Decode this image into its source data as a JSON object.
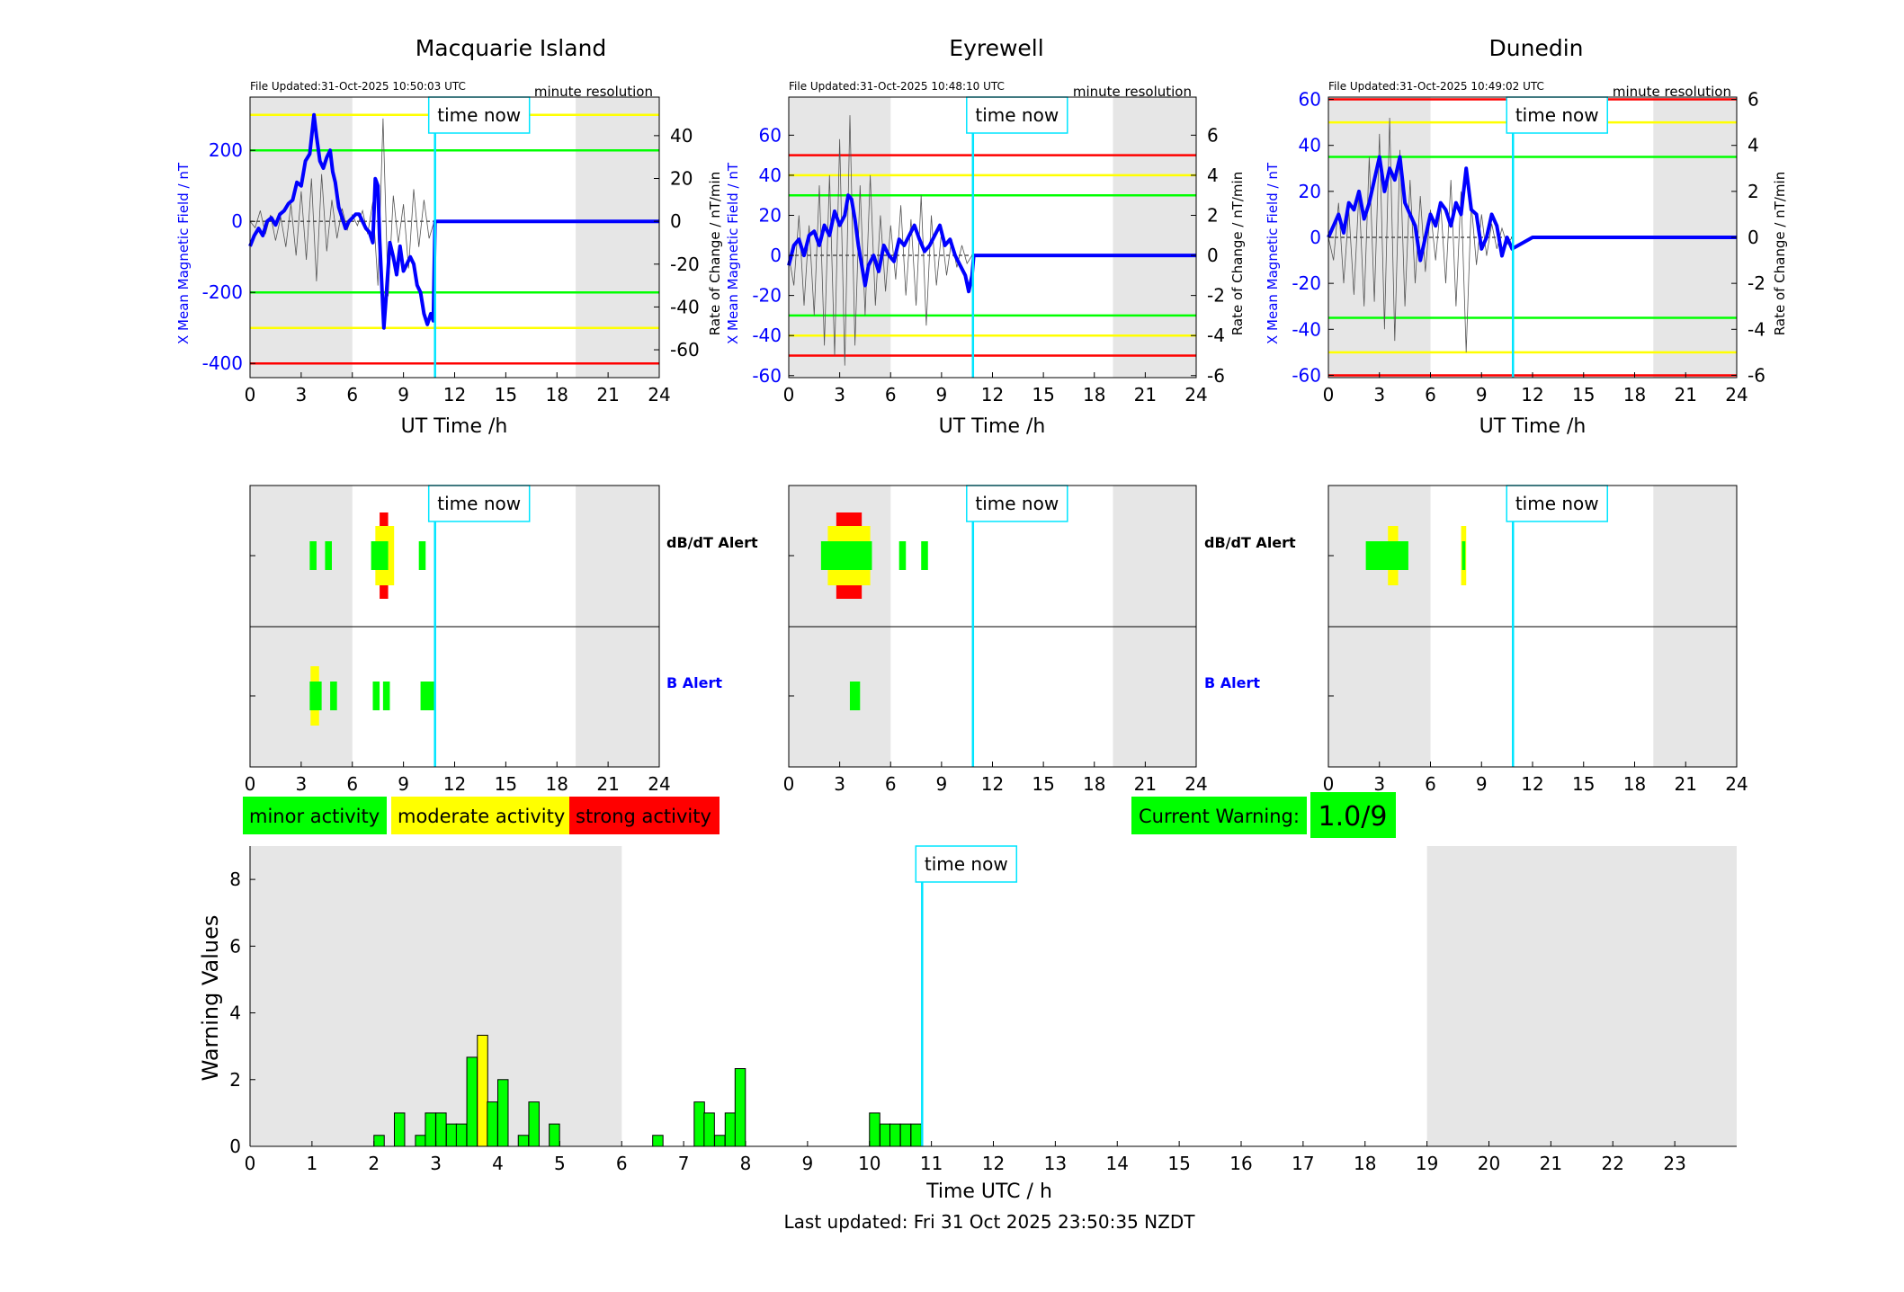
{
  "stations": [
    {
      "id": "mac",
      "name": "Macquarie Island",
      "file_updated": "File Updated:31-Oct-2025 10:50:03 UTC",
      "resolution": "minute resolution",
      "time_now_label": "time now",
      "ylabel_left": "X Mean Magnetic Field / nT",
      "ylabel_right": "Rate of Change / nT/min",
      "xlabel": "UT Time /h",
      "xlim": [
        0,
        24
      ],
      "ylim_left": [
        -440,
        350
      ],
      "yticks_left": [
        -400,
        -200,
        0,
        200
      ],
      "ylim_right": [
        -73,
        58
      ],
      "yticks_right": [
        -60,
        -40,
        -20,
        0,
        20,
        40
      ],
      "xticks": [
        0,
        3,
        6,
        9,
        12,
        15,
        18,
        21,
        24
      ],
      "night_shading": [
        [
          0,
          6
        ],
        [
          19.1,
          24
        ]
      ],
      "time_now": 10.85,
      "thresholds": [
        {
          "y": 300,
          "color": "#ffff00"
        },
        {
          "y": -300,
          "color": "#ffff00"
        },
        {
          "y": 200,
          "color": "#00ff00"
        },
        {
          "y": -200,
          "color": "#00ff00"
        },
        {
          "y": -400,
          "color": "#ff0000"
        }
      ],
      "x_series": {
        "t": [
          0,
          0.25,
          0.5,
          0.75,
          1,
          1.25,
          1.5,
          1.75,
          2,
          2.25,
          2.5,
          2.75,
          3,
          3.25,
          3.5,
          3.75,
          3.9,
          4.1,
          4.3,
          4.5,
          4.7,
          4.85,
          5,
          5.2,
          5.4,
          5.6,
          5.8,
          6,
          6.2,
          6.4,
          6.6,
          6.8,
          7,
          7.2,
          7.35,
          7.5,
          7.6,
          7.75,
          7.85,
          8,
          8.2,
          8.4,
          8.6,
          8.8,
          9,
          9.2,
          9.4,
          9.6,
          9.8,
          10,
          10.2,
          10.4,
          10.6,
          10.75,
          10.85,
          11,
          12,
          24
        ],
        "v": [
          -70,
          -40,
          -20,
          -40,
          0,
          10,
          -10,
          20,
          30,
          50,
          60,
          110,
          100,
          170,
          190,
          300,
          240,
          170,
          150,
          180,
          200,
          140,
          110,
          40,
          10,
          -20,
          0,
          10,
          20,
          20,
          0,
          -20,
          -30,
          -60,
          120,
          100,
          -50,
          -200,
          -300,
          -200,
          -60,
          -100,
          -150,
          -70,
          -140,
          -120,
          -100,
          -120,
          -180,
          -200,
          -260,
          -290,
          -260,
          -280,
          0,
          0,
          0,
          0
        ]
      },
      "dbdt_series": {
        "t": [
          0,
          0.3,
          0.6,
          0.9,
          1.2,
          1.5,
          1.8,
          2.1,
          2.4,
          2.7,
          3.0,
          3.3,
          3.6,
          3.9,
          4.2,
          4.5,
          4.8,
          5.1,
          5.4,
          5.7,
          6.0,
          6.3,
          6.6,
          6.9,
          7.2,
          7.5,
          7.8,
          8.1,
          8.4,
          8.7,
          9.0,
          9.3,
          9.6,
          9.9,
          10.2,
          10.5,
          10.8
        ],
        "v": [
          0,
          -3,
          5,
          -6,
          3,
          -9,
          2,
          -12,
          8,
          -16,
          14,
          -18,
          20,
          -28,
          22,
          -14,
          10,
          -8,
          6,
          -4,
          3,
          -2,
          5,
          -6,
          9,
          -30,
          48,
          -35,
          12,
          -10,
          8,
          -22,
          15,
          -12,
          10,
          -8,
          0
        ]
      },
      "alerts": {
        "dbdt": [
          {
            "start": 3.5,
            "end": 3.9,
            "level": "minor"
          },
          {
            "start": 4.4,
            "end": 4.8,
            "level": "minor"
          },
          {
            "start": 7.6,
            "end": 8.1,
            "level": "strong"
          },
          {
            "start": 7.35,
            "end": 8.45,
            "level": "moderate"
          },
          {
            "start": 7.1,
            "end": 8.1,
            "level": "minor"
          },
          {
            "start": 9.9,
            "end": 10.3,
            "level": "minor"
          }
        ],
        "b": [
          {
            "start": 3.55,
            "end": 4.05,
            "level": "moderate"
          },
          {
            "start": 3.5,
            "end": 4.2,
            "level": "minor"
          },
          {
            "start": 4.7,
            "end": 5.1,
            "level": "minor"
          },
          {
            "start": 7.2,
            "end": 7.6,
            "level": "minor"
          },
          {
            "start": 7.8,
            "end": 8.2,
            "level": "minor"
          },
          {
            "start": 10.0,
            "end": 10.85,
            "level": "minor"
          }
        ]
      }
    },
    {
      "id": "eye",
      "name": "Eyrewell",
      "file_updated": "File Updated:31-Oct-2025 10:48:10 UTC",
      "resolution": "minute resolution",
      "time_now_label": "time now",
      "ylabel_left": "X Mean Magnetic Field / nT",
      "ylabel_right": "Rate of Change / nT/min",
      "xlabel": "UT Time /h",
      "xlim": [
        0,
        24
      ],
      "ylim_left": [
        -61,
        79
      ],
      "yticks_left": [
        -60,
        -40,
        -20,
        0,
        20,
        40,
        60
      ],
      "ylim_right": [
        -6.1,
        7.9
      ],
      "yticks_right": [
        -6,
        -4,
        -2,
        0,
        2,
        4,
        6
      ],
      "xticks": [
        0,
        3,
        6,
        9,
        12,
        15,
        18,
        21,
        24
      ],
      "night_shading": [
        [
          0,
          6
        ],
        [
          19.1,
          24
        ]
      ],
      "time_now": 10.85,
      "thresholds": [
        {
          "y": 50,
          "color": "#ff0000"
        },
        {
          "y": -50,
          "color": "#ff0000"
        },
        {
          "y": 40,
          "color": "#ffff00"
        },
        {
          "y": -40,
          "color": "#ffff00"
        },
        {
          "y": 30,
          "color": "#00ff00"
        },
        {
          "y": -30,
          "color": "#00ff00"
        }
      ],
      "x_series": {
        "t": [
          0,
          0.3,
          0.6,
          0.9,
          1.2,
          1.5,
          1.8,
          2.1,
          2.4,
          2.7,
          3.0,
          3.3,
          3.5,
          3.7,
          3.9,
          4.1,
          4.3,
          4.5,
          4.7,
          5.0,
          5.3,
          5.6,
          5.9,
          6.2,
          6.5,
          6.8,
          7.1,
          7.4,
          7.7,
          8.0,
          8.3,
          8.6,
          8.9,
          9.2,
          9.5,
          9.8,
          10.1,
          10.4,
          10.6,
          10.8,
          10.9,
          12,
          24
        ],
        "v": [
          -5,
          5,
          8,
          0,
          10,
          12,
          5,
          15,
          10,
          22,
          15,
          20,
          30,
          28,
          18,
          5,
          -5,
          -15,
          -5,
          0,
          -8,
          5,
          0,
          -3,
          8,
          5,
          10,
          15,
          8,
          2,
          5,
          10,
          15,
          5,
          8,
          0,
          -5,
          -10,
          -18,
          -10,
          0,
          0,
          0
        ]
      },
      "dbdt_series": {
        "t": [
          0,
          0.3,
          0.6,
          0.9,
          1.2,
          1.5,
          1.8,
          2.1,
          2.4,
          2.7,
          3.0,
          3.3,
          3.6,
          3.9,
          4.2,
          4.5,
          4.8,
          5.1,
          5.4,
          5.7,
          6.0,
          6.3,
          6.6,
          6.9,
          7.2,
          7.5,
          7.8,
          8.1,
          8.4,
          8.7,
          9.0,
          9.3,
          9.6,
          9.9,
          10.2,
          10.5,
          10.8
        ],
        "v": [
          0,
          -1.5,
          2,
          -2.5,
          1.5,
          -3,
          3.5,
          -4.5,
          4,
          -5,
          5.8,
          -5.5,
          7,
          -4.5,
          3.5,
          -3,
          4,
          -2.5,
          2,
          -1.8,
          1.5,
          -1.2,
          2.5,
          -2,
          1.8,
          -2.5,
          3,
          -3.5,
          2,
          -1.5,
          1.2,
          -1,
          0.8,
          -0.6,
          0.5,
          -0.4,
          0
        ]
      },
      "alerts": {
        "dbdt": [
          {
            "start": 2.8,
            "end": 4.3,
            "level": "strong"
          },
          {
            "start": 2.3,
            "end": 4.8,
            "level": "moderate"
          },
          {
            "start": 1.9,
            "end": 4.9,
            "level": "minor"
          },
          {
            "start": 6.5,
            "end": 6.9,
            "level": "minor"
          },
          {
            "start": 7.8,
            "end": 8.2,
            "level": "minor"
          }
        ],
        "b": [
          {
            "start": 3.6,
            "end": 4.2,
            "level": "minor"
          }
        ]
      }
    },
    {
      "id": "dun",
      "name": "Dunedin",
      "file_updated": "File Updated:31-Oct-2025 10:49:02 UTC",
      "resolution": "minute resolution",
      "time_now_label": "time now",
      "ylabel_left": "X Mean Magnetic Field / nT",
      "ylabel_right": "Rate of Change / nT/min",
      "xlabel": "UT Time /h",
      "xlim": [
        0,
        24
      ],
      "ylim_left": [
        -61,
        61
      ],
      "yticks_left": [
        -60,
        -40,
        -20,
        0,
        20,
        40,
        60
      ],
      "ylim_right": [
        -6.1,
        6.1
      ],
      "yticks_right": [
        -6,
        -4,
        -2,
        0,
        2,
        4,
        6
      ],
      "xticks": [
        0,
        3,
        6,
        9,
        12,
        15,
        18,
        21,
        24
      ],
      "night_shading": [
        [
          0,
          6
        ],
        [
          19.1,
          24
        ]
      ],
      "time_now": 10.85,
      "thresholds": [
        {
          "y": 60,
          "color": "#ff0000"
        },
        {
          "y": -60,
          "color": "#ff0000"
        },
        {
          "y": 50,
          "color": "#ffff00"
        },
        {
          "y": -50,
          "color": "#ffff00"
        },
        {
          "y": 35,
          "color": "#00ff00"
        },
        {
          "y": -35,
          "color": "#00ff00"
        }
      ],
      "x_series": {
        "t": [
          0,
          0.3,
          0.6,
          0.9,
          1.2,
          1.5,
          1.8,
          2.1,
          2.4,
          2.7,
          3.0,
          3.3,
          3.6,
          3.9,
          4.2,
          4.5,
          4.8,
          5.1,
          5.4,
          5.7,
          6.0,
          6.3,
          6.6,
          6.9,
          7.2,
          7.5,
          7.8,
          8.1,
          8.4,
          8.7,
          9.0,
          9.3,
          9.6,
          9.9,
          10.2,
          10.5,
          10.8,
          12,
          24
        ],
        "v": [
          0,
          5,
          10,
          2,
          15,
          12,
          20,
          8,
          15,
          25,
          35,
          20,
          30,
          25,
          35,
          15,
          10,
          5,
          -10,
          0,
          10,
          5,
          15,
          12,
          5,
          15,
          10,
          30,
          12,
          10,
          -5,
          0,
          10,
          5,
          -8,
          0,
          -5,
          0,
          0
        ]
      },
      "dbdt_series": {
        "t": [
          0,
          0.3,
          0.6,
          0.9,
          1.2,
          1.5,
          1.8,
          2.1,
          2.4,
          2.7,
          3.0,
          3.3,
          3.6,
          3.9,
          4.2,
          4.5,
          4.8,
          5.1,
          5.4,
          5.7,
          6.0,
          6.3,
          6.6,
          6.9,
          7.2,
          7.5,
          7.8,
          8.1,
          8.4,
          8.7,
          9.0,
          9.3,
          9.6,
          9.9,
          10.2,
          10.5,
          10.8
        ],
        "v": [
          0,
          -1,
          1.5,
          -2,
          1.2,
          -2.5,
          2,
          -3,
          3.5,
          -2.8,
          4.5,
          -4,
          5.2,
          -4.5,
          3.8,
          -3,
          2.5,
          -2,
          1.8,
          -1.5,
          1.2,
          -1,
          1.5,
          -2,
          2.5,
          -3,
          2,
          -5,
          1.5,
          -1.2,
          1,
          -0.8,
          0.6,
          -0.5,
          0.4,
          -0.3,
          0
        ]
      },
      "alerts": {
        "dbdt": [
          {
            "start": 3.5,
            "end": 4.1,
            "level": "moderate"
          },
          {
            "start": 2.2,
            "end": 4.7,
            "level": "minor"
          },
          {
            "start": 7.8,
            "end": 8.1,
            "level": "moderate"
          },
          {
            "start": 7.85,
            "end": 8.05,
            "level": "minor"
          }
        ],
        "b": []
      }
    }
  ],
  "alert_labels": {
    "dbdt": "dB/dT Alert",
    "b": "B Alert"
  },
  "legend": {
    "minor": {
      "label": "minor activity",
      "color": "#00ff00"
    },
    "moderate": {
      "label": "moderate activity",
      "color": "#ffff00"
    },
    "strong": {
      "label": "strong activity",
      "color": "#ff0000"
    }
  },
  "current_warning": {
    "label": "Current Warning:",
    "value": "1.0/9",
    "color": "#00ff00"
  },
  "chart_data": {
    "type": "bar",
    "title": "",
    "xlabel": "Time UTC / h",
    "ylabel": "Warning Values",
    "xlim": [
      0,
      24
    ],
    "ylim": [
      0,
      9
    ],
    "xticks": [
      0,
      1,
      2,
      3,
      4,
      5,
      6,
      7,
      8,
      9,
      10,
      11,
      12,
      13,
      14,
      15,
      16,
      17,
      18,
      19,
      20,
      21,
      22,
      23
    ],
    "yticks": [
      0,
      2,
      4,
      6,
      8
    ],
    "night_shading": [
      [
        0,
        6
      ],
      [
        19,
        24
      ]
    ],
    "time_now": 10.85,
    "time_now_label": "time now",
    "bar_width": 0.1667,
    "bars": [
      {
        "x": 2.0,
        "v": 0.33,
        "level": "minor"
      },
      {
        "x": 2.33,
        "v": 1.0,
        "level": "minor"
      },
      {
        "x": 2.67,
        "v": 0.33,
        "level": "minor"
      },
      {
        "x": 2.83,
        "v": 1.0,
        "level": "minor"
      },
      {
        "x": 3.0,
        "v": 1.0,
        "level": "minor"
      },
      {
        "x": 3.17,
        "v": 0.67,
        "level": "minor"
      },
      {
        "x": 3.33,
        "v": 0.67,
        "level": "minor"
      },
      {
        "x": 3.5,
        "v": 2.67,
        "level": "minor"
      },
      {
        "x": 3.67,
        "v": 3.33,
        "level": "moderate"
      },
      {
        "x": 3.83,
        "v": 1.33,
        "level": "minor"
      },
      {
        "x": 4.0,
        "v": 2.0,
        "level": "minor"
      },
      {
        "x": 4.33,
        "v": 0.33,
        "level": "minor"
      },
      {
        "x": 4.5,
        "v": 1.33,
        "level": "minor"
      },
      {
        "x": 4.83,
        "v": 0.67,
        "level": "minor"
      },
      {
        "x": 6.5,
        "v": 0.33,
        "level": "minor"
      },
      {
        "x": 7.17,
        "v": 1.33,
        "level": "minor"
      },
      {
        "x": 7.33,
        "v": 1.0,
        "level": "minor"
      },
      {
        "x": 7.5,
        "v": 0.33,
        "level": "minor"
      },
      {
        "x": 7.67,
        "v": 1.0,
        "level": "minor"
      },
      {
        "x": 7.83,
        "v": 2.33,
        "level": "minor"
      },
      {
        "x": 10.0,
        "v": 1.0,
        "level": "minor"
      },
      {
        "x": 10.17,
        "v": 0.67,
        "level": "minor"
      },
      {
        "x": 10.33,
        "v": 0.67,
        "level": "minor"
      },
      {
        "x": 10.5,
        "v": 0.67,
        "level": "minor"
      },
      {
        "x": 10.67,
        "v": 0.67,
        "level": "minor"
      }
    ]
  },
  "last_updated": "Last updated: Fri 31 Oct 2025 23:50:35 NZDT"
}
